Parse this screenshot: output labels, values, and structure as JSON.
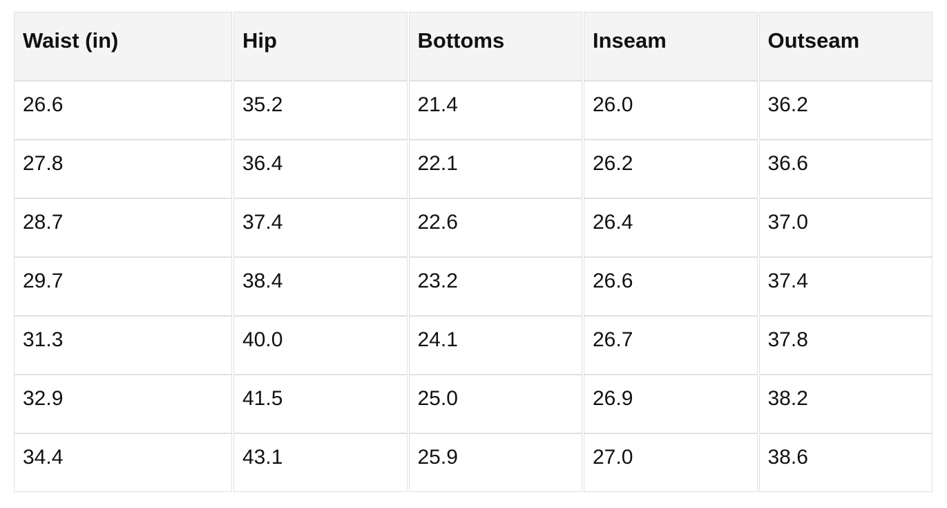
{
  "table": {
    "name": "size-chart",
    "columns": [
      "Waist (in)",
      "Hip",
      "Bottoms",
      "Inseam",
      "Outseam"
    ],
    "rows": [
      [
        "26.6",
        "35.2",
        "21.4",
        "26.0",
        "36.2"
      ],
      [
        "27.8",
        "36.4",
        "22.1",
        "26.2",
        "36.6"
      ],
      [
        "28.7",
        "37.4",
        "22.6",
        "26.4",
        "37.0"
      ],
      [
        "29.7",
        "38.4",
        "23.2",
        "26.6",
        "37.4"
      ],
      [
        "31.3",
        "40.0",
        "24.1",
        "26.7",
        "37.8"
      ],
      [
        "32.9",
        "41.5",
        "25.0",
        "26.9",
        "38.2"
      ],
      [
        "34.4",
        "43.1",
        "25.9",
        "27.0",
        "38.6"
      ]
    ]
  },
  "colors": {
    "header_bg": "#f4f4f4",
    "row_bg": "#ffffff",
    "border": "#e0e0e0",
    "text": "#111111"
  }
}
